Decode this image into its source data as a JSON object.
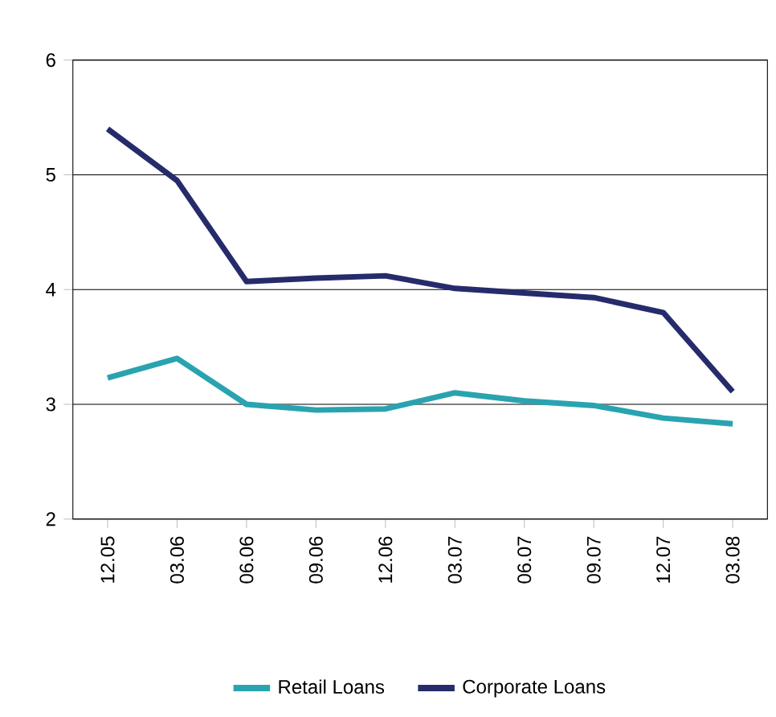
{
  "chart_data": {
    "type": "line",
    "categories": [
      "12.05",
      "03.06",
      "06.06",
      "09.06",
      "12.06",
      "03.07",
      "06.07",
      "09.07",
      "12.07",
      "03.08"
    ],
    "series": [
      {
        "name": "Retail Loans",
        "color": "#2aa3b0",
        "values": [
          3.23,
          3.4,
          3.0,
          2.95,
          2.96,
          3.1,
          3.03,
          2.99,
          2.88,
          2.83
        ]
      },
      {
        "name": "Corporate Loans",
        "color": "#262b6b",
        "values": [
          5.4,
          4.95,
          4.07,
          4.1,
          4.12,
          4.01,
          3.97,
          3.93,
          3.8,
          3.11
        ]
      }
    ],
    "ylim": [
      2,
      6
    ],
    "yticks": [
      2,
      3,
      4,
      5,
      6
    ],
    "grid": "y",
    "legend": "bottom",
    "marker": "none",
    "line_style": "solid"
  }
}
